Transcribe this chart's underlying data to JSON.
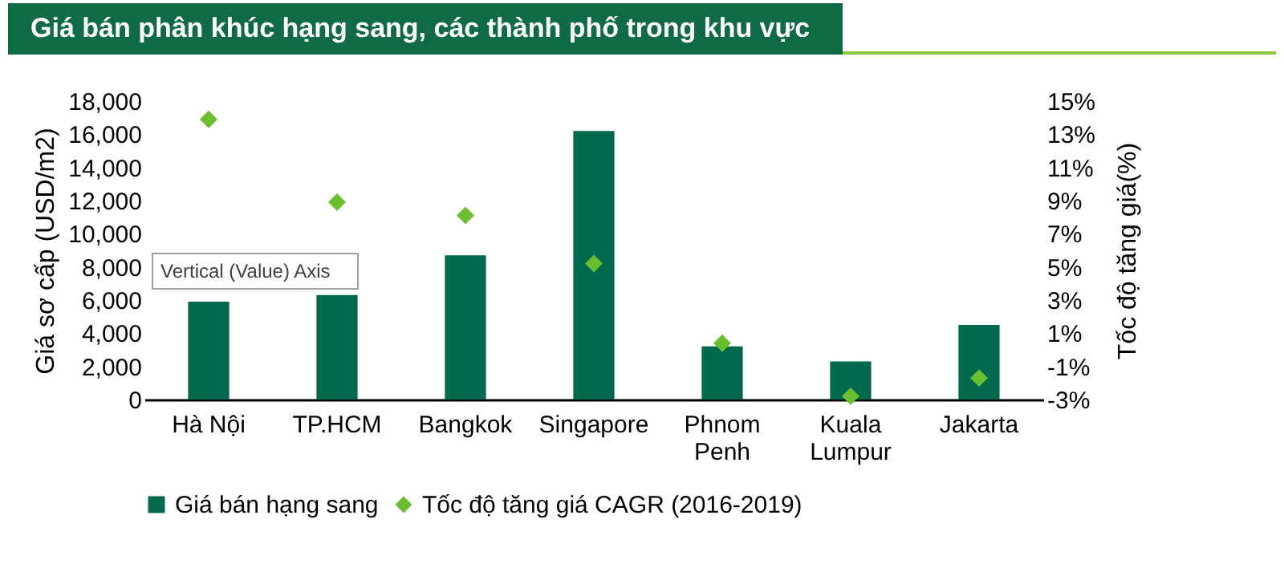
{
  "chart_data": {
    "type": "bar",
    "title": "Giá bán phân khúc hạng sang, các thành phố trong khu vực",
    "ylabel": "Giá sơ cấp (USD/m2)",
    "y2label": "Tốc độ tăng giá(%)",
    "categories": [
      "Hà Nội",
      "TP.HCM",
      "Bangkok",
      "Singapore",
      "Phnom Penh",
      "Kuala Lumpur",
      "Jakarta"
    ],
    "series": [
      {
        "name": "Giá bán hạng sang",
        "color": "#006a4e",
        "values": [
          5900,
          6300,
          8700,
          16200,
          3200,
          2300,
          4500
        ]
      },
      {
        "name": "Tốc độ tăng giá CAGR (2016-2019)",
        "type": "scatter",
        "axis": "y2",
        "marker": "diamond",
        "color": "#6abf2e",
        "values": [
          13.9,
          8.9,
          8.1,
          5.2,
          0.4,
          -2.8,
          -1.7
        ]
      }
    ],
    "ylim": [
      0,
      18000
    ],
    "yticks": [
      {
        "value": 0,
        "label": "0"
      },
      {
        "value": 2000,
        "label": "2,000"
      },
      {
        "value": 4000,
        "label": "4,000"
      },
      {
        "value": 6000,
        "label": "6,000"
      },
      {
        "value": 8000,
        "label": "8,000"
      },
      {
        "value": 10000,
        "label": "10,000"
      },
      {
        "value": 12000,
        "label": "12,000"
      },
      {
        "value": 14000,
        "label": "14,000"
      },
      {
        "value": 16000,
        "label": "16,000"
      },
      {
        "value": 18000,
        "label": "18,000"
      }
    ],
    "y2lim": [
      -3,
      15
    ],
    "y2ticks": [
      {
        "value": -3,
        "label": "-3%"
      },
      {
        "value": -1,
        "label": "-1%"
      },
      {
        "value": 1,
        "label": "1%"
      },
      {
        "value": 3,
        "label": "3%"
      },
      {
        "value": 5,
        "label": "5%"
      },
      {
        "value": 7,
        "label": "7%"
      },
      {
        "value": 9,
        "label": "9%"
      },
      {
        "value": 11,
        "label": "11%"
      },
      {
        "value": 13,
        "label": "13%"
      },
      {
        "value": 15,
        "label": "15%"
      }
    ],
    "annotations": [
      "Vertical (Value) Axis"
    ],
    "legend": "bottom",
    "grid": false
  }
}
